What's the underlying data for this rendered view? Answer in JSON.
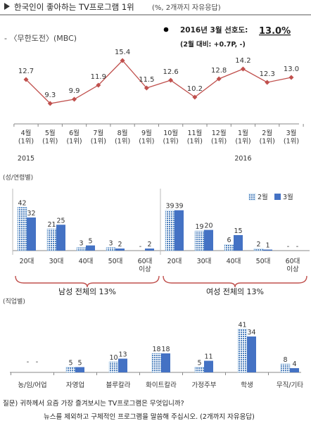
{
  "header": {
    "title": "한국인이 좋아하는 TV프로그램 1위",
    "title_note": "(%, 2개까지 자유응답)",
    "program": "- 〈무한도전〉(MBC)",
    "preference_label": "2016년 3월 선호도:",
    "preference_value": "13.0%",
    "comparison": "(2월 대비: +0.7P, -)"
  },
  "colors": {
    "line": "#c0504d",
    "bar_light": "#9dc3e6",
    "bar_dark": "#4472c4",
    "axis": "#888888",
    "brace": "#c0504d"
  },
  "chart_data": [
    {
      "type": "line",
      "x": [
        "4월\n(1위)",
        "5월\n(1위)",
        "6월\n(1위)",
        "7월\n(1위)",
        "8월\n(1위)",
        "9월\n(1위)",
        "10월\n(1위)",
        "11월\n(1위)",
        "12월\n(1위)",
        "1월\n(1위)",
        "2월\n(1위)",
        "3월\n(1위)"
      ],
      "year_labels": [
        "2015",
        "2016"
      ],
      "values": [
        12.7,
        9.3,
        9.9,
        11.9,
        15.4,
        11.5,
        12.6,
        10.2,
        12.8,
        14.2,
        12.3,
        13.0
      ],
      "labels": [
        "12.7",
        "9.3",
        "9.9",
        "11.9",
        "15.4",
        "11.5",
        "12.6",
        "10.2",
        "12.8",
        "14.2",
        "12.3",
        "13.0"
      ],
      "ylim": [
        8,
        17
      ]
    },
    {
      "type": "bar",
      "title": "(성/연령별)",
      "legend": [
        "2월",
        "3월"
      ],
      "legend_position": "top-right",
      "groups": [
        {
          "categories": [
            "20대",
            "30대",
            "40대",
            "50대",
            "60대\n이상"
          ],
          "series": [
            {
              "name": "2월",
              "values": [
                42,
                21,
                3,
                3,
                null
              ],
              "labels": [
                "42",
                "21",
                "3",
                "3",
                "-"
              ]
            },
            {
              "name": "3월",
              "values": [
                32,
                25,
                5,
                2,
                2
              ],
              "labels": [
                "32",
                "25",
                "5",
                "2",
                "2"
              ]
            }
          ],
          "summary": "남성 전체의 13%"
        },
        {
          "categories": [
            "20대",
            "30대",
            "40대",
            "50대",
            "60대\n이상"
          ],
          "series": [
            {
              "name": "2월",
              "values": [
                39,
                19,
                6,
                2,
                null
              ],
              "labels": [
                "39",
                "19",
                "6",
                "2",
                "-"
              ]
            },
            {
              "name": "3월",
              "values": [
                39,
                20,
                15,
                1,
                null
              ],
              "labels": [
                "39",
                "20",
                "15",
                "1",
                "-"
              ]
            }
          ],
          "summary": "여성 전체의 13%"
        }
      ],
      "ylim": [
        0,
        45
      ]
    },
    {
      "type": "bar",
      "title": "(직업별)",
      "categories": [
        "농/임/어업",
        "자영업",
        "블루칼라",
        "화이트칼라",
        "가정주부",
        "학생",
        "무직/기타"
      ],
      "series": [
        {
          "name": "2월",
          "values": [
            null,
            5,
            10,
            18,
            5,
            41,
            8
          ],
          "labels": [
            "-",
            "5",
            "10",
            "18",
            "5",
            "41",
            "8"
          ]
        },
        {
          "name": "3월",
          "values": [
            null,
            5,
            13,
            18,
            11,
            34,
            4
          ],
          "labels": [
            "-",
            "5",
            "13",
            "18",
            "11",
            "34",
            "4"
          ]
        }
      ],
      "ylim": [
        0,
        45
      ]
    }
  ],
  "question": {
    "line1": "질문) 귀하께서 요즘 가장 즐겨보시는 TV프로그램은 무엇입니까?",
    "line2": "뉴스를 제외하고 구체적인 프로그램을 말씀해 주십시오. (2개까지 자유응답)"
  }
}
